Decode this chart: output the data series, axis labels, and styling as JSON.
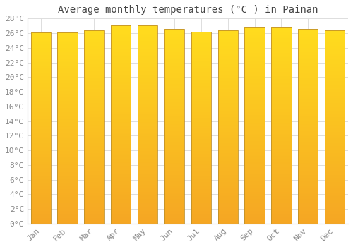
{
  "title": "Average monthly temperatures (°C ) in Painan",
  "months": [
    "Jan",
    "Feb",
    "Mar",
    "Apr",
    "May",
    "Jun",
    "Jul",
    "Aug",
    "Sep",
    "Oct",
    "Nov",
    "Dec"
  ],
  "values": [
    26.1,
    26.1,
    26.4,
    27.1,
    27.1,
    26.6,
    26.2,
    26.4,
    26.9,
    26.9,
    26.6,
    26.4
  ],
  "bar_color_bottom": "#F5A623",
  "bar_color_top": "#FFD000",
  "bar_edge_color": "#B8860B",
  "background_color": "#FFFFFF",
  "plot_bg_color": "#FFFFFF",
  "grid_color": "#DDDDDD",
  "ylim": [
    0,
    28
  ],
  "ytick_step": 2,
  "title_fontsize": 10,
  "tick_fontsize": 8,
  "font_family": "monospace",
  "title_color": "#444444",
  "tick_color": "#888888",
  "bar_width": 0.75
}
